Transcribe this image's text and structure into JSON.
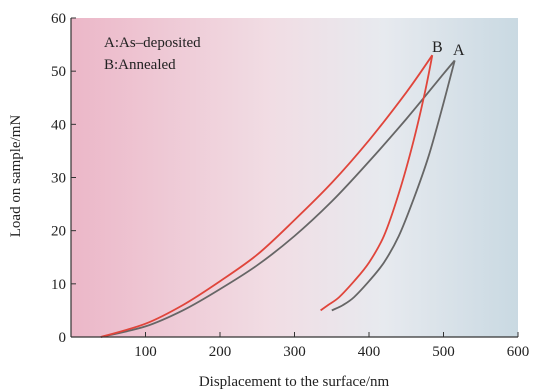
{
  "chart_data": {
    "type": "line",
    "xlabel": "Displacement to the surface/nm",
    "ylabel": "Load on sample/mN",
    "xlim": [
      0,
      600
    ],
    "ylim": [
      0,
      60
    ],
    "x_ticks": [
      "100",
      "200",
      "300",
      "400",
      "500",
      "600"
    ],
    "y_ticks": [
      "0",
      "10",
      "20",
      "30",
      "40",
      "50",
      "60"
    ],
    "legend": [
      "A:As–deposited",
      "B:Annealed"
    ],
    "legend_position": "top-left",
    "grid": false,
    "series": [
      {
        "name": "A",
        "color": "#666666",
        "loading": [
          [
            40,
            0
          ],
          [
            100,
            2
          ],
          [
            150,
            5
          ],
          [
            200,
            9
          ],
          [
            250,
            13.5
          ],
          [
            300,
            19
          ],
          [
            350,
            25.5
          ],
          [
            400,
            33
          ],
          [
            450,
            41
          ],
          [
            500,
            49.5
          ],
          [
            515,
            52
          ]
        ],
        "unloading": [
          [
            515,
            52
          ],
          [
            500,
            44
          ],
          [
            480,
            34
          ],
          [
            460,
            26
          ],
          [
            440,
            19
          ],
          [
            420,
            14
          ],
          [
            400,
            10.5
          ],
          [
            380,
            7.5
          ],
          [
            365,
            6
          ],
          [
            350,
            5
          ]
        ]
      },
      {
        "name": "B",
        "color": "#e0453b",
        "loading": [
          [
            40,
            0
          ],
          [
            100,
            2.5
          ],
          [
            150,
            6
          ],
          [
            200,
            10.5
          ],
          [
            250,
            15.5
          ],
          [
            300,
            22
          ],
          [
            350,
            29
          ],
          [
            400,
            37
          ],
          [
            450,
            46
          ],
          [
            485,
            53
          ]
        ],
        "unloading": [
          [
            485,
            53
          ],
          [
            475,
            46
          ],
          [
            460,
            37
          ],
          [
            440,
            27
          ],
          [
            420,
            19
          ],
          [
            400,
            14
          ],
          [
            380,
            10.5
          ],
          [
            360,
            7.5
          ],
          [
            345,
            6
          ],
          [
            335,
            5
          ]
        ]
      }
    ]
  }
}
